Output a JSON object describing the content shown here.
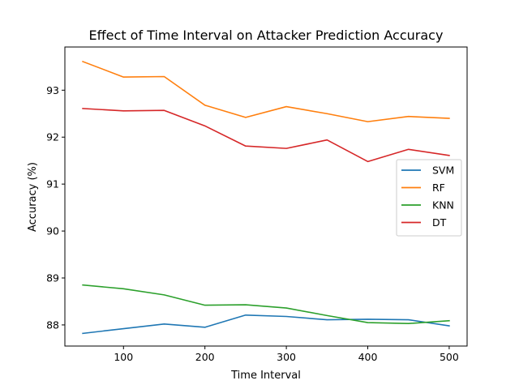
{
  "chart_data": {
    "type": "line",
    "title": "Effect of Time Interval on Attacker Prediction Accuracy",
    "xlabel": "Time Interval",
    "ylabel": "Accuracy (%)",
    "x": [
      50,
      100,
      150,
      200,
      250,
      300,
      350,
      400,
      450,
      500
    ],
    "xlim": [
      28,
      522
    ],
    "ylim": [
      87.55,
      93.92
    ],
    "xticks": [
      100,
      200,
      300,
      400,
      500
    ],
    "yticks": [
      88,
      89,
      90,
      91,
      92,
      93
    ],
    "grid": false,
    "legend_position": "center-right",
    "series": [
      {
        "name": "SVM",
        "color": "#1f77b4",
        "values": [
          87.82,
          87.92,
          88.02,
          87.95,
          88.21,
          88.18,
          88.11,
          88.12,
          88.11,
          87.98
        ]
      },
      {
        "name": "RF",
        "color": "#ff7f0e",
        "values": [
          93.61,
          93.28,
          93.29,
          92.68,
          92.42,
          92.65,
          92.5,
          92.33,
          92.44,
          92.4
        ]
      },
      {
        "name": "KNN",
        "color": "#2ca02c",
        "values": [
          88.85,
          88.77,
          88.64,
          88.42,
          88.43,
          88.36,
          88.2,
          88.05,
          88.03,
          88.09
        ]
      },
      {
        "name": "DT",
        "color": "#d62728",
        "values": [
          92.61,
          92.56,
          92.57,
          92.24,
          91.81,
          91.76,
          91.94,
          91.48,
          91.74,
          91.61
        ]
      }
    ]
  }
}
